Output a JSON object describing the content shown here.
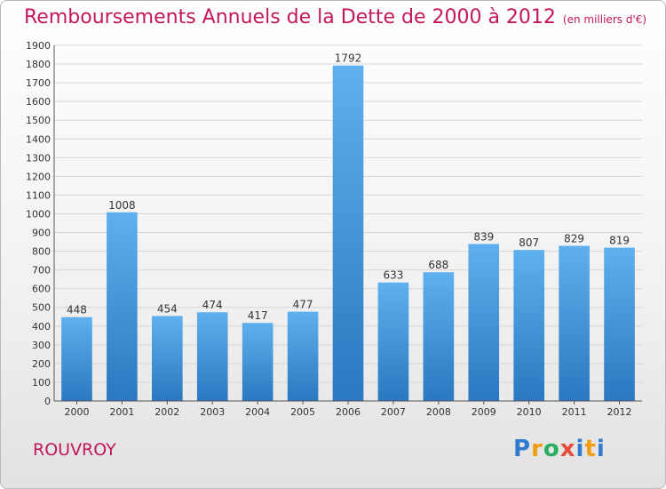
{
  "title": "Remboursements Annuels de la Dette de 2000 à 2012",
  "unit": "(en milliers d'€)",
  "commune": "ROUVROY",
  "logo_letters": [
    "P",
    "r",
    "o",
    "x",
    "i",
    "t",
    "i"
  ],
  "chart_data": {
    "type": "bar",
    "categories": [
      "2000",
      "2001",
      "2002",
      "2003",
      "2004",
      "2005",
      "2006",
      "2007",
      "2008",
      "2009",
      "2010",
      "2011",
      "2012"
    ],
    "values": [
      448,
      1008,
      454,
      474,
      417,
      477,
      1792,
      633,
      688,
      839,
      807,
      829,
      819
    ],
    "ylim": [
      0,
      1900
    ],
    "yticks": [
      0,
      100,
      200,
      300,
      400,
      500,
      600,
      700,
      800,
      900,
      1000,
      1100,
      1200,
      1300,
      1400,
      1500,
      1600,
      1700,
      1800,
      1900
    ],
    "grid": true,
    "bar_color": "#3a8fd6"
  }
}
